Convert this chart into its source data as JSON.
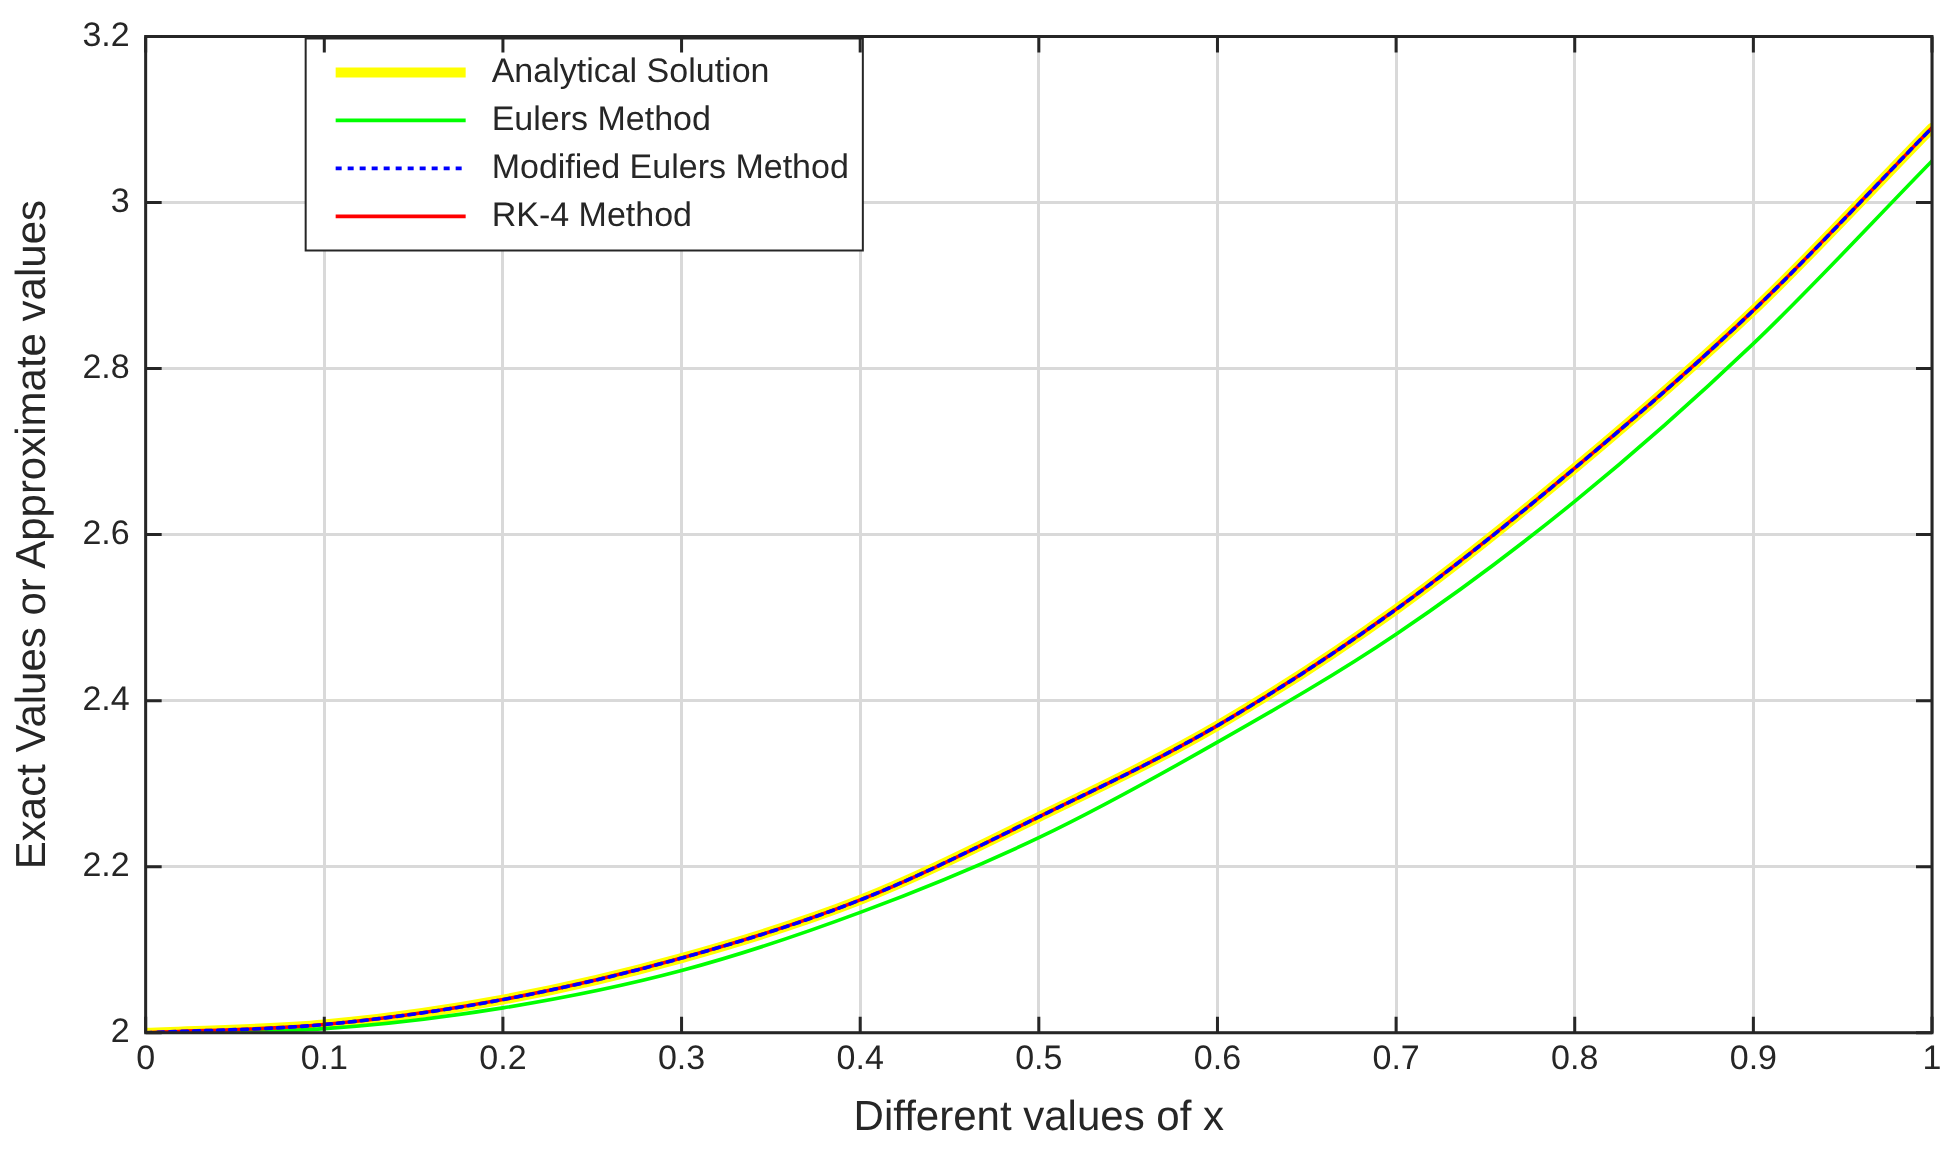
{
  "chart_data": {
    "type": "line",
    "xlabel": "Different values of x",
    "ylabel": "Exact Values or Approximate values",
    "x": [
      0,
      0.1,
      0.2,
      0.3,
      0.4,
      0.5,
      0.6,
      0.7,
      0.8,
      0.9,
      1
    ],
    "series": [
      {
        "name": "Analytical Solution",
        "color": "#ffff00",
        "values": [
          2,
          2.01,
          2.04,
          2.09,
          2.16,
          2.26,
          2.37,
          2.51,
          2.68,
          2.87,
          3.09
        ]
      },
      {
        "name": "Eulers Method",
        "color": "#00ff00",
        "values": [
          2,
          2.005,
          2.03,
          2.075,
          2.145,
          2.235,
          2.35,
          2.48,
          2.64,
          2.83,
          3.05
        ]
      },
      {
        "name": "Modified Eulers Method",
        "color": "#0000ff",
        "line_style": "dotted",
        "values": [
          2,
          2.01,
          2.04,
          2.09,
          2.16,
          2.26,
          2.37,
          2.51,
          2.68,
          2.87,
          3.09
        ]
      },
      {
        "name": "RK-4 Method",
        "color": "#ff0000",
        "values": [
          2,
          2.01,
          2.04,
          2.09,
          2.16,
          2.26,
          2.37,
          2.51,
          2.68,
          2.87,
          3.09
        ]
      }
    ],
    "xlim": [
      0,
      1
    ],
    "xticks": [
      0,
      0.1,
      0.2,
      0.3,
      0.4,
      0.5,
      0.6,
      0.7,
      0.8,
      0.9,
      1
    ],
    "ylim": [
      2,
      3.2
    ],
    "yticks": [
      2,
      2.2,
      2.4,
      2.6,
      2.8,
      3,
      3.2
    ],
    "grid": true,
    "legend": "top left",
    "marker": "none",
    "line_style": "solid"
  }
}
